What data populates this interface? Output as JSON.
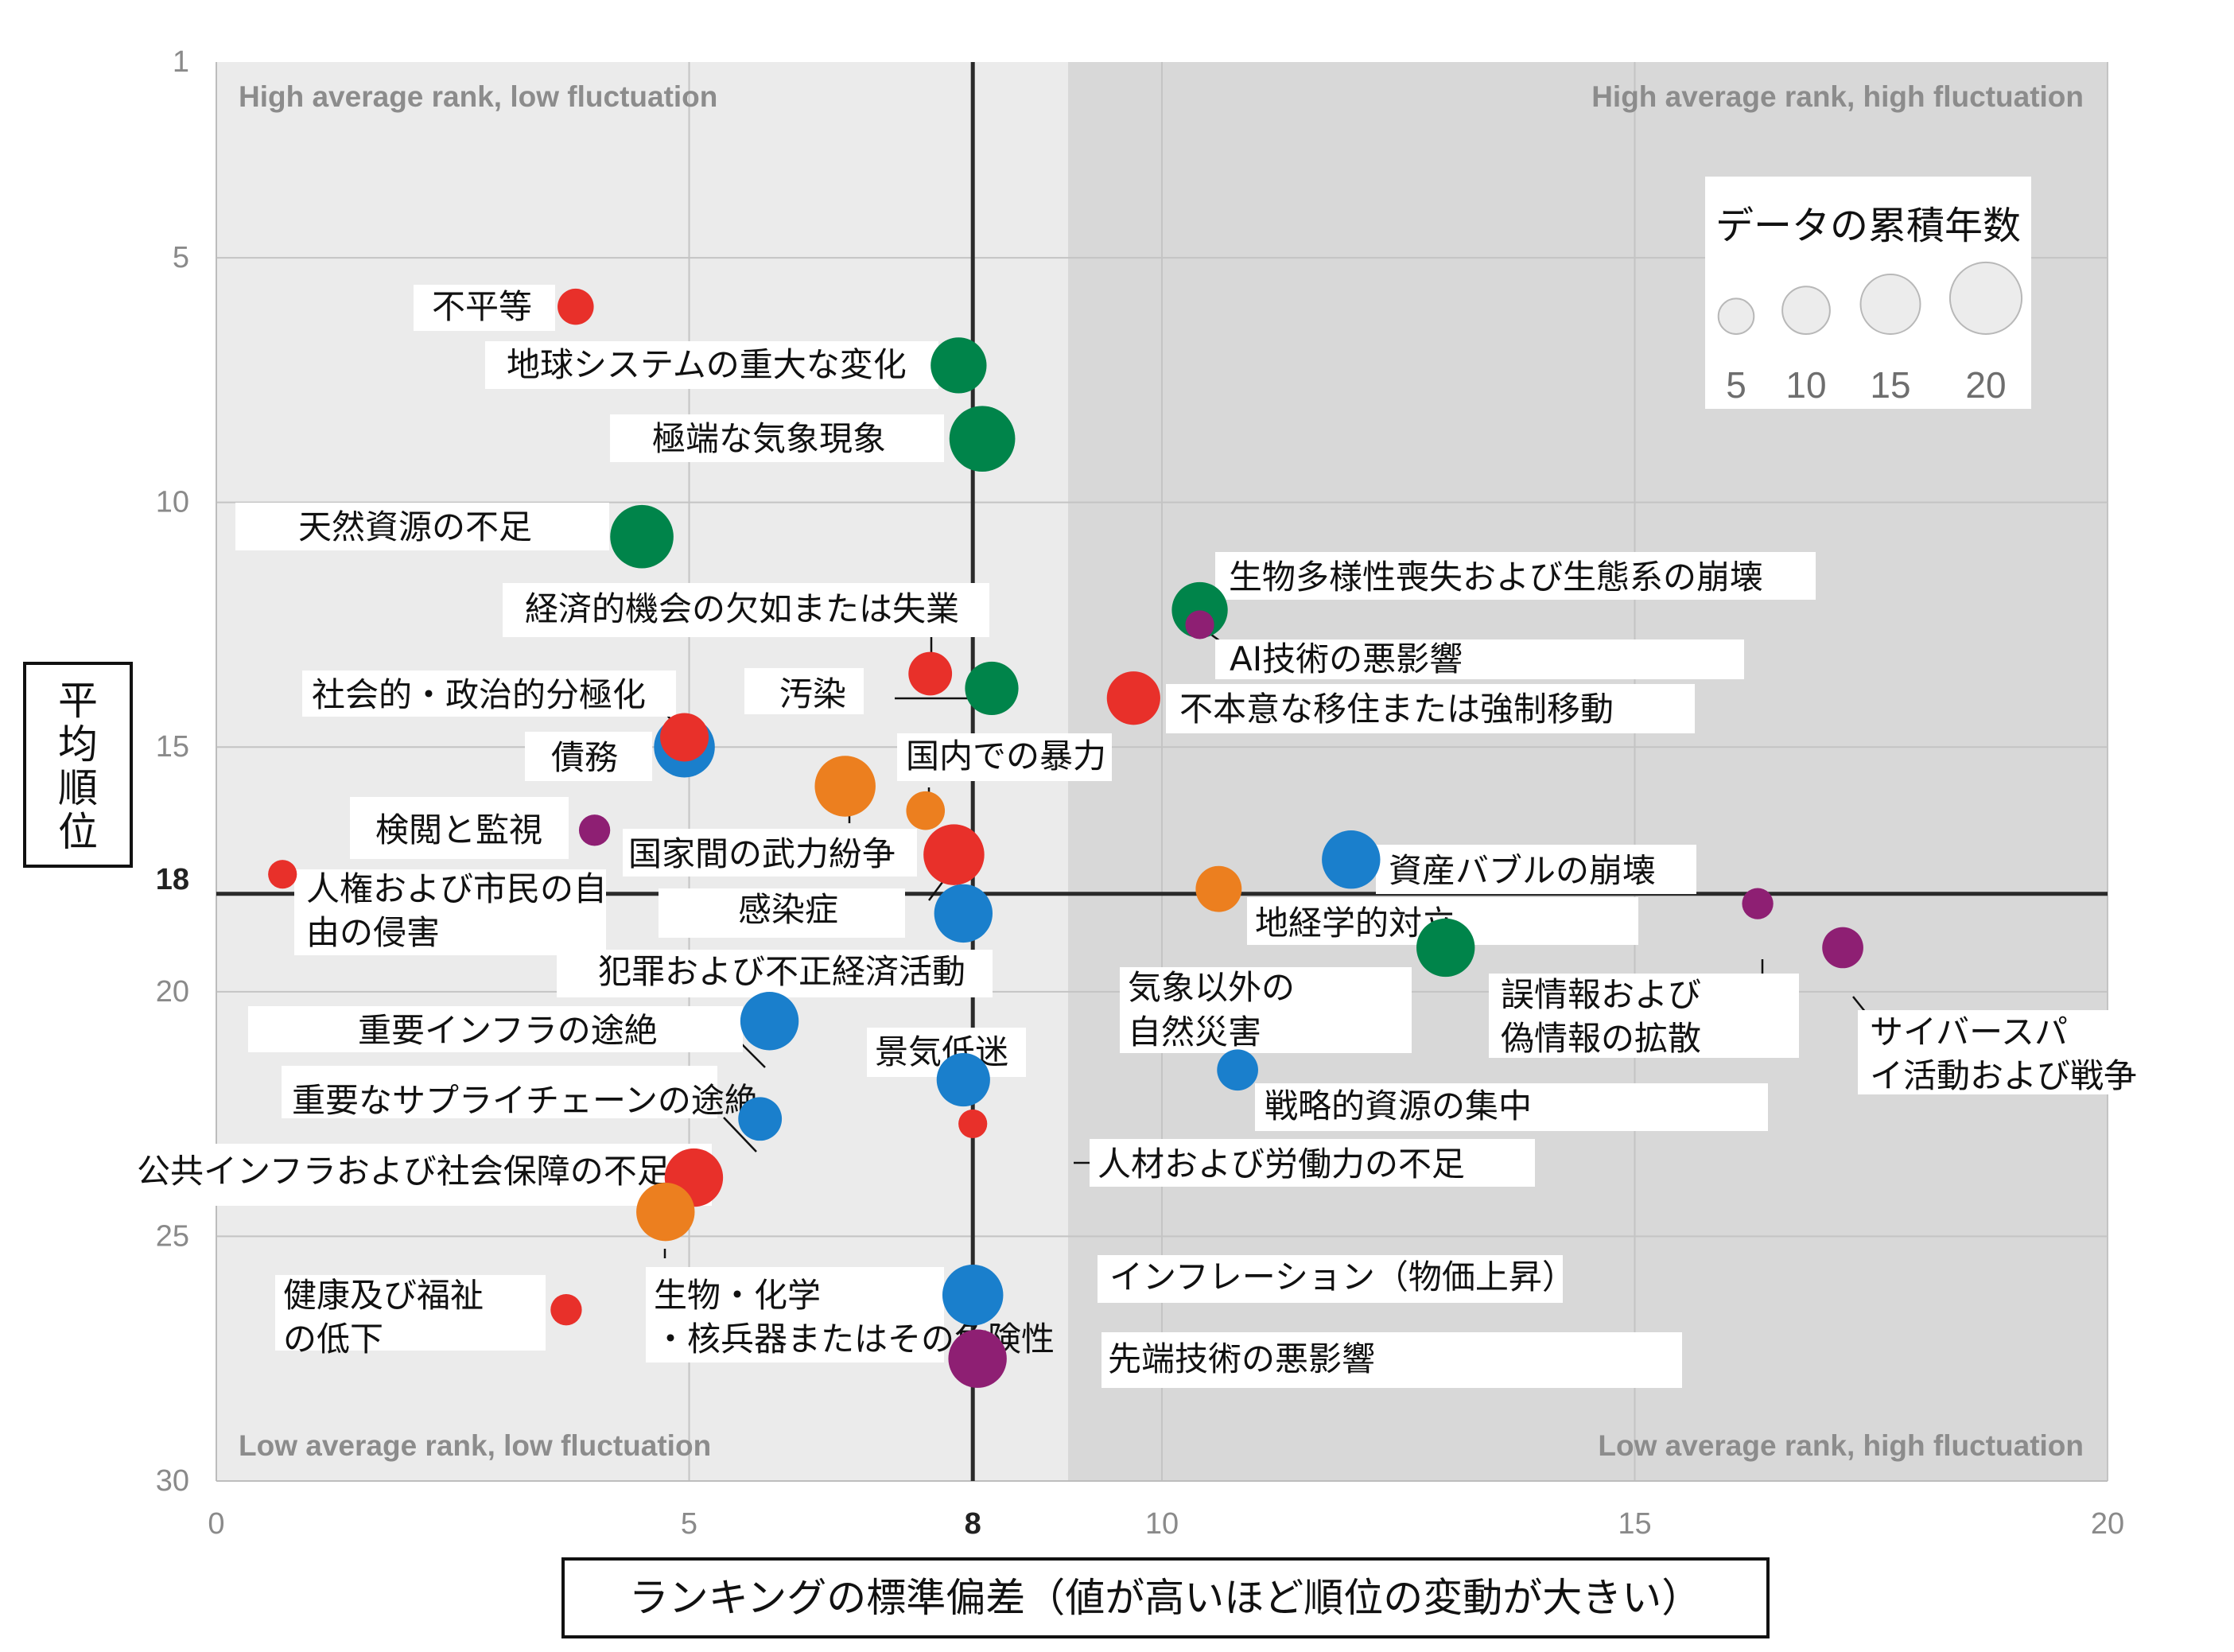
{
  "chart_data": {
    "type": "scatter",
    "xlabel": "ランキングの標準偏差（値が高いほど順位の変動が大きい）",
    "ylabel": "平均順位",
    "xlim": [
      0,
      20
    ],
    "ylim": [
      1,
      30
    ],
    "y_inverted": true,
    "x_ticks": [
      0,
      5,
      10,
      15,
      20
    ],
    "y_ticks": [
      1,
      5,
      10,
      15,
      20,
      25,
      30
    ],
    "reference_lines": {
      "x": 8,
      "y": 18
    },
    "quadrant_labels": {
      "top_left": "High average rank, low fluctuation",
      "top_right": "High average rank, high fluctuation",
      "bottom_left": "Low average rank, low fluctuation",
      "bottom_right": "Low average rank, high fluctuation"
    },
    "legend": {
      "title": "データの累積年数",
      "sizes": [
        5,
        10,
        15,
        20
      ],
      "position": "top-right"
    },
    "colors": {
      "red": "#e8302a",
      "green": "#00844a",
      "blue": "#1a7fcc",
      "orange": "#ec7f1f",
      "purple": "#8e1f73"
    },
    "points": [
      {
        "label": "不平等",
        "x": 3.8,
        "y": 6.0,
        "years": 5,
        "color": "red"
      },
      {
        "label": "地球システムの重大な変化",
        "x": 7.85,
        "y": 7.2,
        "years": 13,
        "color": "green"
      },
      {
        "label": "極端な気象現象",
        "x": 8.1,
        "y": 8.7,
        "years": 17,
        "color": "green"
      },
      {
        "label": "天然資源の不足",
        "x": 4.5,
        "y": 10.7,
        "years": 16,
        "color": "green"
      },
      {
        "label": "生物多様性喪失および生態系の崩壊",
        "x": 10.4,
        "y": 12.2,
        "years": 13,
        "color": "green"
      },
      {
        "label": "AI技術の悪影響",
        "x": 10.4,
        "y": 12.5,
        "years": 2,
        "color": "purple"
      },
      {
        "label": "経済的機会の欠如または失業",
        "x": 7.55,
        "y": 13.5,
        "years": 8,
        "color": "red"
      },
      {
        "label": "汚染",
        "x": 8.2,
        "y": 13.8,
        "years": 12,
        "color": "green"
      },
      {
        "label": "不本意な移住または強制移動",
        "x": 9.7,
        "y": 14.0,
        "years": 12,
        "color": "red"
      },
      {
        "label": "社会的・政治的分極化",
        "x": 4.95,
        "y": 14.8,
        "years": 10,
        "color": "red"
      },
      {
        "label": "債務",
        "x": 4.95,
        "y": 15.0,
        "years": 15,
        "color": "blue"
      },
      {
        "label": "国内での暴力",
        "x": 6.65,
        "y": 15.8,
        "years": 15,
        "color": "orange"
      },
      {
        "label": "検閲と監視",
        "x": 4.0,
        "y": 16.7,
        "years": 3,
        "color": "purple"
      },
      {
        "label": "国家間の武力紛争",
        "x": 7.5,
        "y": 16.3,
        "years": 6,
        "color": "orange"
      },
      {
        "label": "感染症",
        "x": 7.8,
        "y": 17.2,
        "years": 15,
        "color": "red"
      },
      {
        "label": "人権および市民の自由の侵害",
        "x": 0.7,
        "y": 17.6,
        "years": 2,
        "color": "red"
      },
      {
        "label": "資産バブルの崩壊",
        "x": 12.0,
        "y": 17.3,
        "years": 14,
        "color": "blue"
      },
      {
        "label": "地経学的対立",
        "x": 10.6,
        "y": 17.9,
        "years": 9,
        "color": "orange"
      },
      {
        "label": "犯罪および不正経済活動",
        "x": 7.9,
        "y": 18.4,
        "years": 14,
        "color": "blue"
      },
      {
        "label": "誤情報および偽情報の拡散",
        "x": 16.3,
        "y": 18.2,
        "years": 3,
        "color": "purple"
      },
      {
        "label": "気象以外の自然災害",
        "x": 13.0,
        "y": 19.1,
        "years": 14,
        "color": "green"
      },
      {
        "label": "サイバースパイ活動および戦争",
        "x": 17.2,
        "y": 19.1,
        "years": 7,
        "color": "purple"
      },
      {
        "label": "重要インフラの途絶",
        "x": 5.85,
        "y": 20.6,
        "years": 14,
        "color": "blue"
      },
      {
        "label": "景気低迷",
        "x": 7.9,
        "y": 21.8,
        "years": 12,
        "color": "blue"
      },
      {
        "label": "戦略的資源の集中",
        "x": 10.8,
        "y": 21.6,
        "years": 7,
        "color": "blue"
      },
      {
        "label": "重要なサプライチェーンの途絶",
        "x": 5.75,
        "y": 22.6,
        "years": 8,
        "color": "blue"
      },
      {
        "label": "人材および労働力の不足",
        "x": 8.0,
        "y": 22.7,
        "years": 2,
        "color": "red"
      },
      {
        "label": "公共インフラおよび社会保障の不足",
        "x": 5.05,
        "y": 23.8,
        "years": 14,
        "color": "red"
      },
      {
        "label": "生物・化学・核兵器またはその危険性",
        "x": 4.75,
        "y": 24.5,
        "years": 14,
        "color": "orange"
      },
      {
        "label": "健康及び福祉の低下",
        "x": 3.7,
        "y": 26.5,
        "years": 3,
        "color": "red"
      },
      {
        "label": "インフレーション（物価上昇）",
        "x": 8.0,
        "y": 26.2,
        "years": 15,
        "color": "blue"
      },
      {
        "label": "先端技術の悪影響",
        "x": 8.05,
        "y": 27.5,
        "years": 14,
        "color": "purple"
      }
    ]
  }
}
